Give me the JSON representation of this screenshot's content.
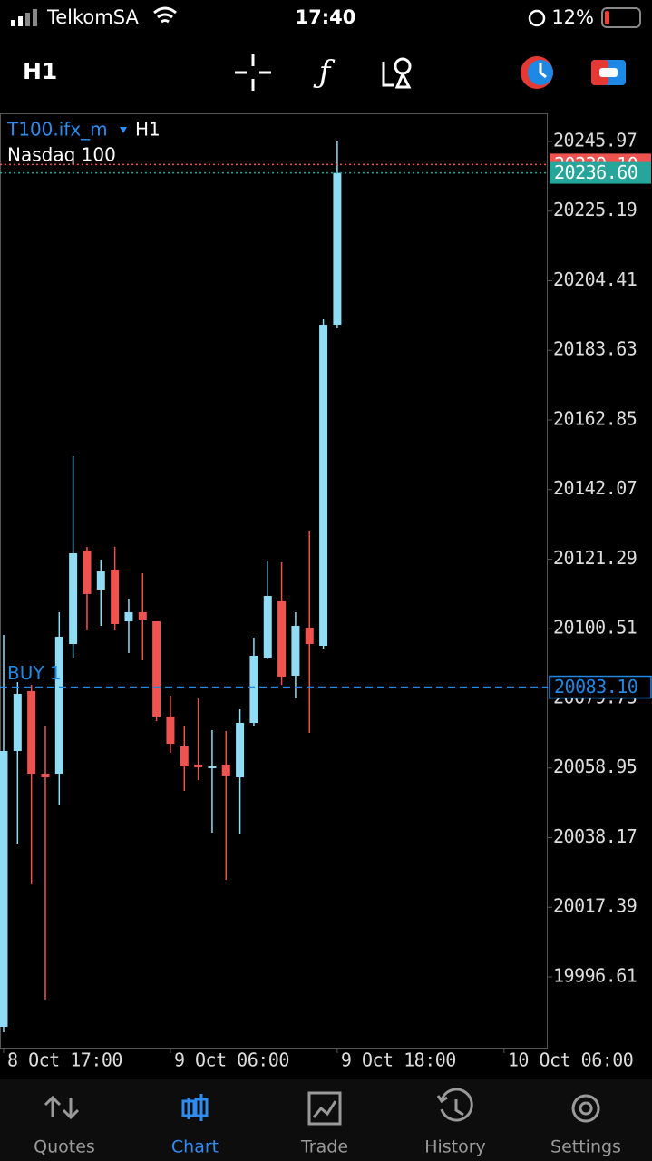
{
  "status_bar": {
    "carrier": "TelkomSA",
    "time": "17:40",
    "battery": "12%"
  },
  "toolbar": {
    "timeframe": "H1"
  },
  "chart_data": {
    "type": "candlestick",
    "symbol": "T100.ifx_m",
    "timeframe": "H1",
    "subtitle": "Nasdaq 100",
    "x": [
      0,
      1,
      2,
      3,
      4,
      5,
      6,
      7,
      8,
      9,
      10,
      11,
      12,
      13,
      14,
      15,
      16,
      17,
      18,
      19,
      20,
      21,
      22,
      23,
      24
    ],
    "open": [
      19981.72,
      20064.03,
      20081.9,
      20057.26,
      20057.26,
      20095.97,
      20123.86,
      20112.22,
      20118.18,
      20102.74,
      20105.45,
      20102.74,
      20074.31,
      20065.38,
      20059.96,
      20058.88,
      20059.96,
      20056.17,
      20072.42,
      20091.91,
      20108.7,
      20086.5,
      20100.85,
      20095.43,
      20191.28
    ],
    "high": [
      20098.68,
      20084.6,
      20083.79,
      20071.61,
      20105.45,
      20152.02,
      20124.94,
      20121.15,
      20124.94,
      20109.51,
      20117.09,
      20102.74,
      20080.54,
      20071.61,
      20079.73,
      20070.25,
      20069.98,
      20076.48,
      20097.87,
      20120.88,
      20120.34,
      20105.45,
      20129.82,
      20192.9,
      20246.24
    ],
    "low": [
      19980.09,
      20036.41,
      20024.23,
      19989.84,
      20047.78,
      20091.91,
      20100.04,
      20101.39,
      20100.04,
      20093.27,
      20091.1,
      20072.96,
      20063.48,
      20052.11,
      20055.36,
      20039.66,
      20025.58,
      20039.12,
      20071.61,
      20091.37,
      20083.79,
      20079.73,
      20069.44,
      20094.62,
      20190.2
    ],
    "close": [
      20064.03,
      20081.08,
      20057.26,
      20056.17,
      20098.14,
      20123.05,
      20110.87,
      20117.63,
      20101.93,
      20105.45,
      20103.28,
      20074.31,
      20066.19,
      20059.42,
      20059.15,
      20059.42,
      20056.72,
      20072.42,
      20092.45,
      20110.32,
      20086.23,
      20101.39,
      20095.97,
      20191.28,
      20236.6
    ],
    "up_color": "#8fdcf4",
    "down_color": "#ef5350",
    "xlim": [
      -0.26,
      39.14
    ],
    "xticks": [
      {
        "value": 0,
        "label": "8 Oct 17:00"
      },
      {
        "value": 12,
        "label": "9 Oct 06:00"
      },
      {
        "value": 24,
        "label": "9 Oct 18:00"
      },
      {
        "value": 36,
        "label": "10 Oct 06:00"
      }
    ],
    "ylim": [
      19975.49,
      20254.36
    ],
    "yticks": [
      20245.97,
      20225.19,
      20204.41,
      20183.63,
      20162.85,
      20142.07,
      20121.29,
      20100.51,
      20079.73,
      20058.95,
      20038.17,
      20017.39,
      19996.61
    ],
    "ask_line": {
      "value": 20239.1,
      "label": "20239.10",
      "color": "#ef5350"
    },
    "bid_line": {
      "value": 20236.6,
      "label": "20236.60",
      "color": "#26a69a"
    },
    "position_line": {
      "name": "BUY 1",
      "value": 20083.1,
      "label": "20083.10",
      "color": "#1e88e5"
    }
  },
  "tab_bar": {
    "tabs": [
      "Quotes",
      "Chart",
      "Trade",
      "History",
      "Settings"
    ],
    "active": "Chart"
  }
}
